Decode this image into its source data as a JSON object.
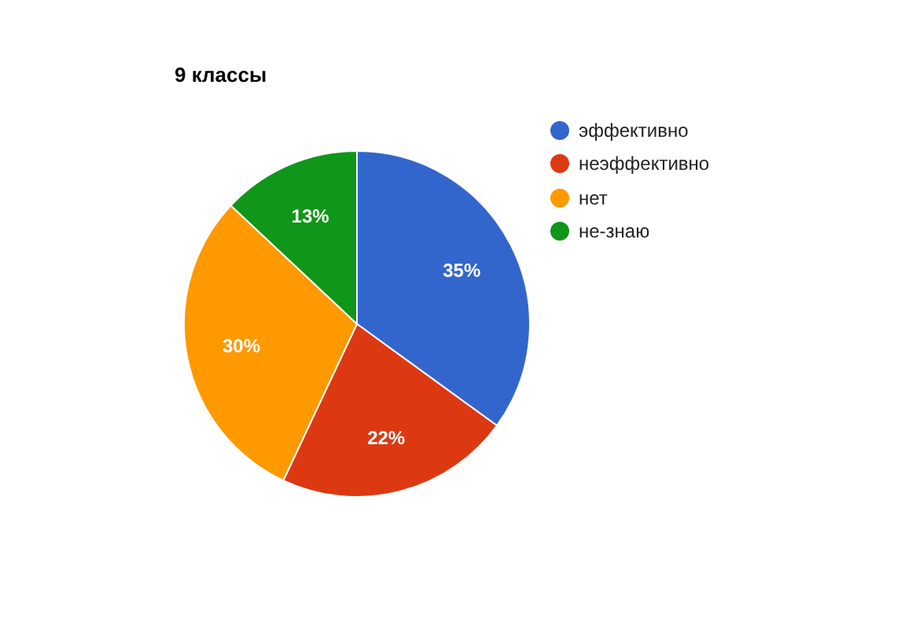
{
  "chart_data": {
    "type": "pie",
    "title": "9 классы",
    "categories": [
      "эффективно",
      "неэффективно",
      "нет",
      "не-знаю"
    ],
    "values": [
      35,
      22,
      30,
      13
    ],
    "colors": [
      "#3366cc",
      "#dc3912",
      "#ff9900",
      "#109618"
    ],
    "value_labels": [
      "35%",
      "22%",
      "30%",
      "13%"
    ],
    "legend": "top right"
  }
}
